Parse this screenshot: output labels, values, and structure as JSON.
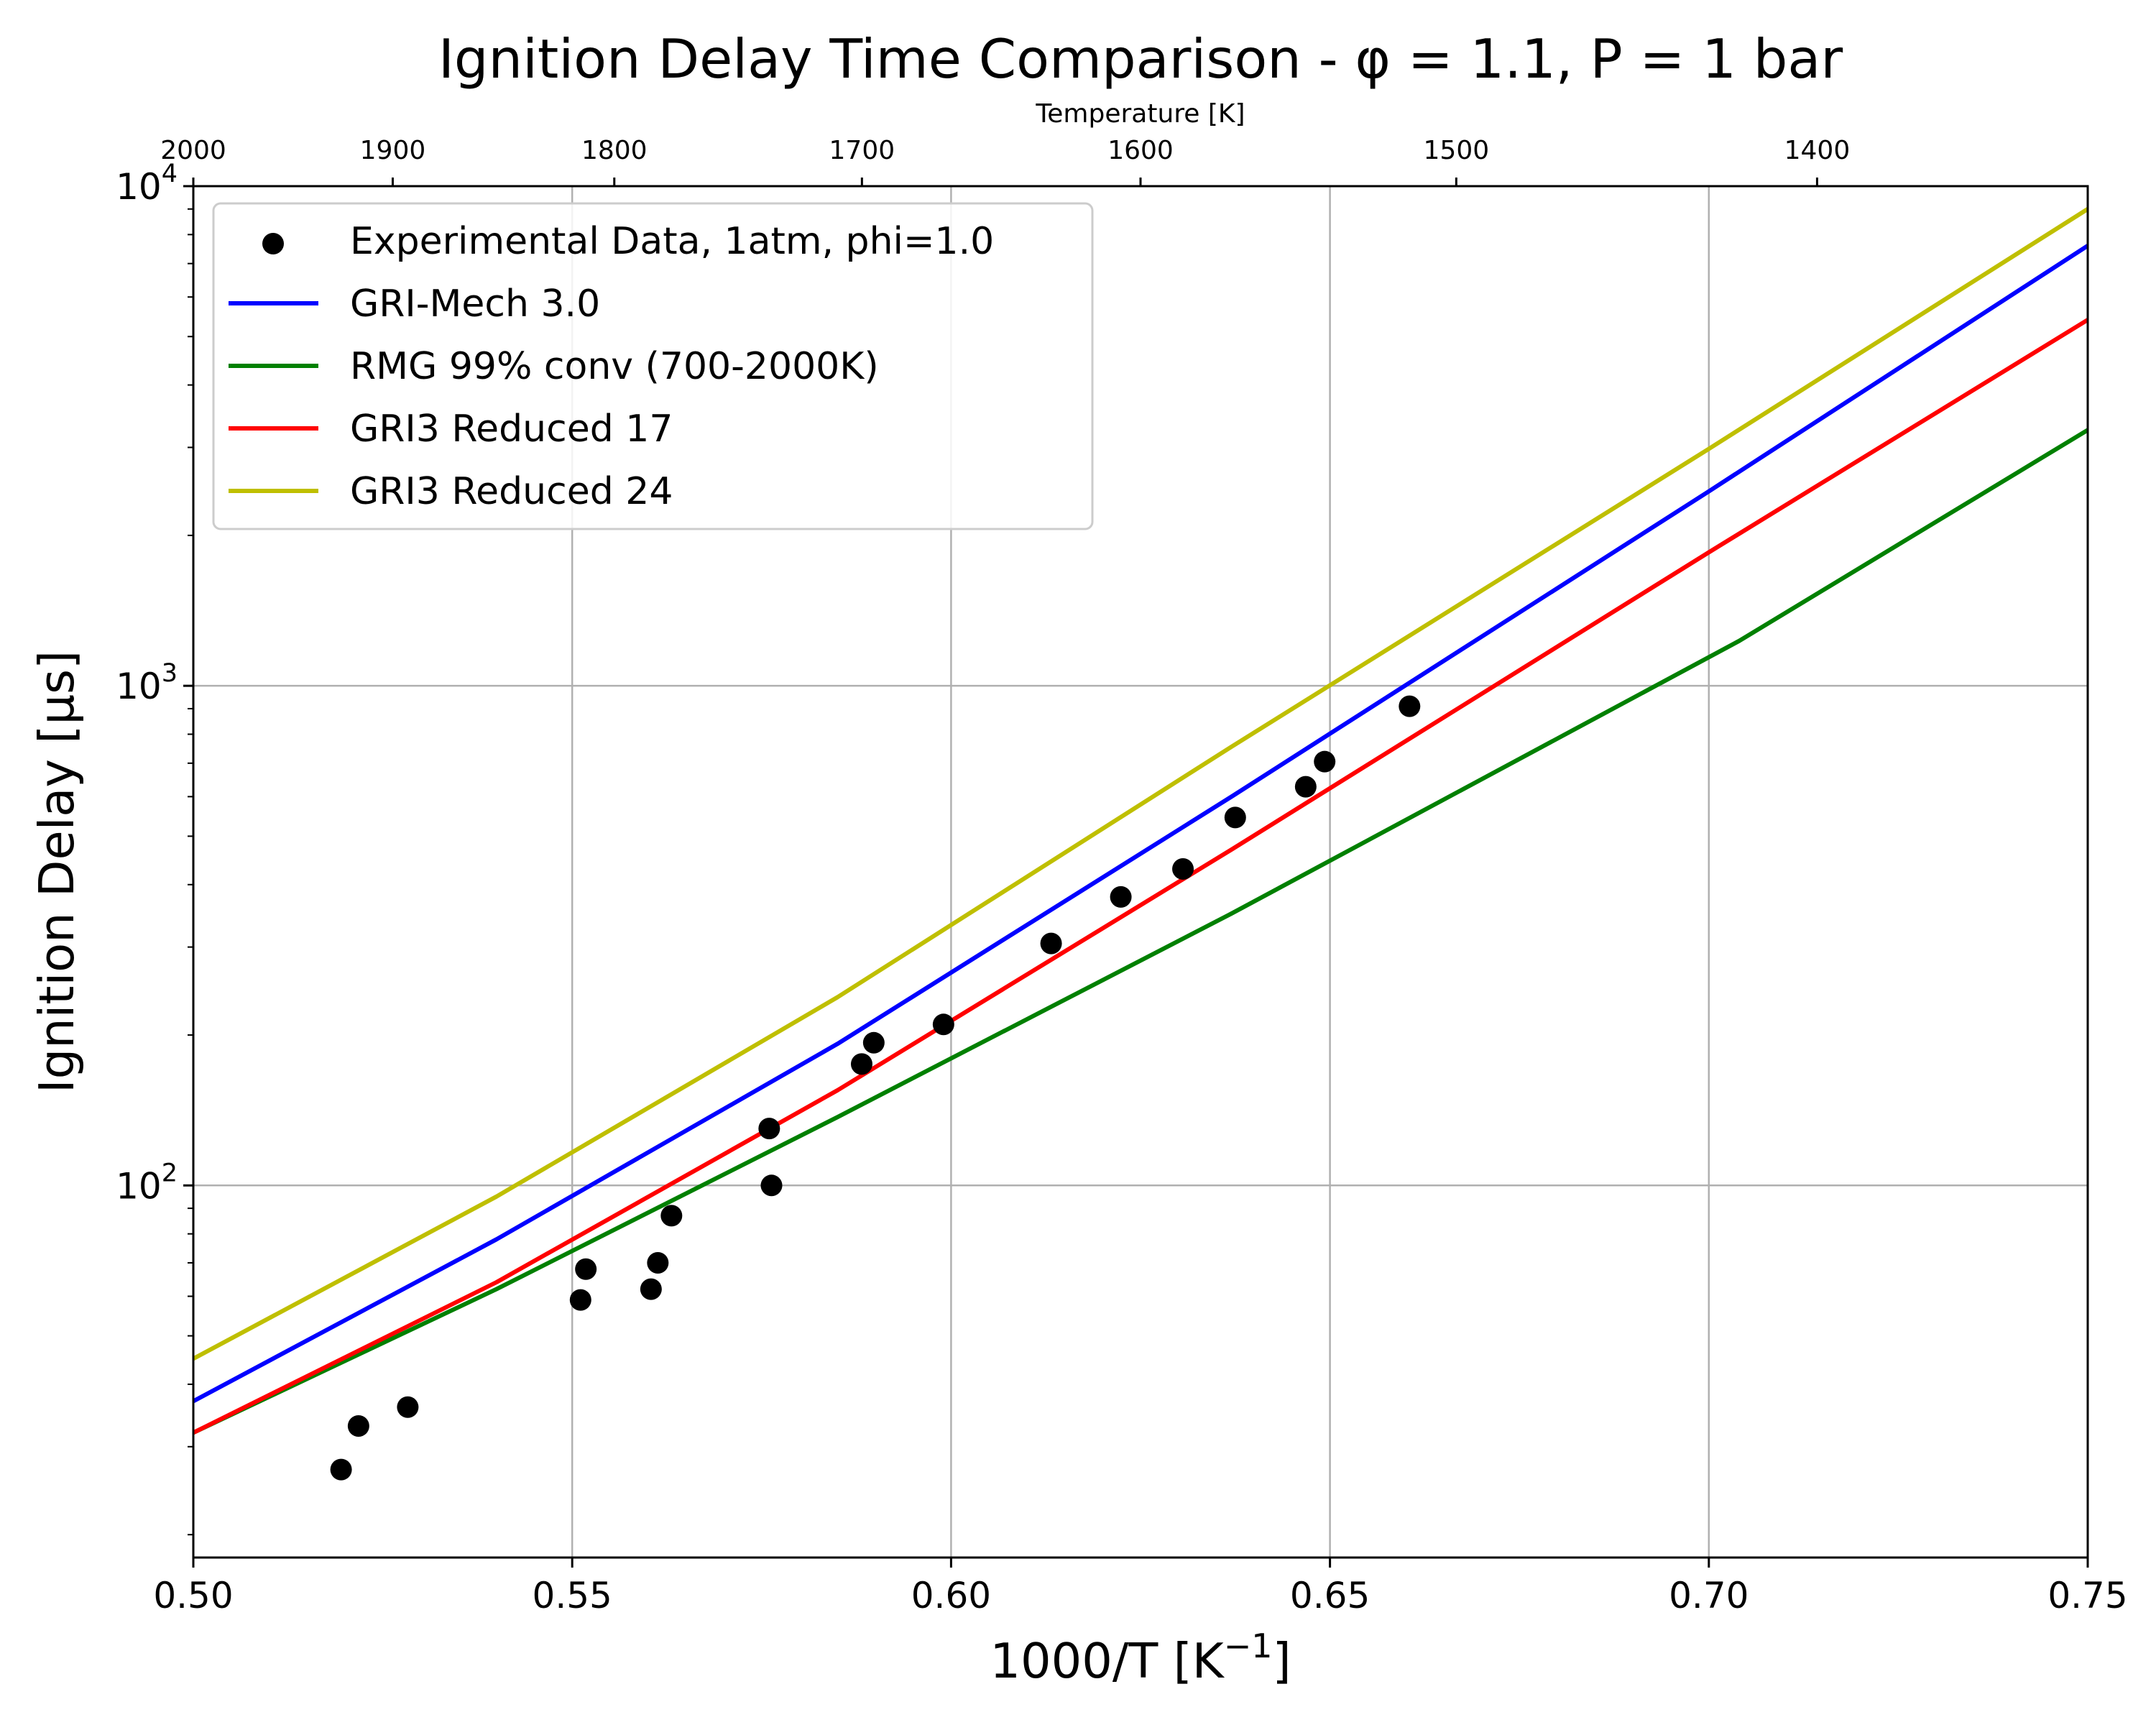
{
  "chart_data": {
    "type": "line",
    "title": "Ignition Delay Time Comparison - φ = 1.1, P = 1 bar",
    "xlabel_base": "1000/T [K",
    "xlabel_sup": "−1",
    "xlabel_end": "]",
    "ylabel": "Ignition Delay [μs]",
    "top_xlabel": "Temperature [K]",
    "xlim": [
      0.5,
      0.75
    ],
    "ylim": [
      18,
      10000
    ],
    "yscale": "log",
    "grid": true,
    "legend_position": "top-left",
    "x_ticks": [
      {
        "value": 0.5,
        "label": "0.50"
      },
      {
        "value": 0.55,
        "label": "0.55"
      },
      {
        "value": 0.6,
        "label": "0.60"
      },
      {
        "value": 0.65,
        "label": "0.65"
      },
      {
        "value": 0.7,
        "label": "0.70"
      },
      {
        "value": 0.75,
        "label": "0.75"
      }
    ],
    "y_ticks": [
      {
        "value": 100,
        "base": "10",
        "exp": "2"
      },
      {
        "value": 1000,
        "base": "10",
        "exp": "3"
      },
      {
        "value": 10000,
        "base": "10",
        "exp": "4"
      }
    ],
    "top_ticks": [
      {
        "temperature": 2000,
        "label": "2000"
      },
      {
        "temperature": 1900,
        "label": "1900"
      },
      {
        "temperature": 1800,
        "label": "1800"
      },
      {
        "temperature": 1700,
        "label": "1700"
      },
      {
        "temperature": 1600,
        "label": "1600"
      },
      {
        "temperature": 1500,
        "label": "1500"
      },
      {
        "temperature": 1400,
        "label": "1400"
      }
    ],
    "scatter": {
      "name": "Experimental Data, 1atm, phi=1.0",
      "color": "#000000",
      "points": [
        {
          "x": 0.5195,
          "y": 27
        },
        {
          "x": 0.5218,
          "y": 33
        },
        {
          "x": 0.5283,
          "y": 36
        },
        {
          "x": 0.5511,
          "y": 59
        },
        {
          "x": 0.5518,
          "y": 68
        },
        {
          "x": 0.5604,
          "y": 62
        },
        {
          "x": 0.5613,
          "y": 70
        },
        {
          "x": 0.5631,
          "y": 87
        },
        {
          "x": 0.576,
          "y": 130
        },
        {
          "x": 0.5763,
          "y": 100
        },
        {
          "x": 0.5882,
          "y": 175
        },
        {
          "x": 0.5898,
          "y": 193
        },
        {
          "x": 0.599,
          "y": 210
        },
        {
          "x": 0.6132,
          "y": 305
        },
        {
          "x": 0.6224,
          "y": 378
        },
        {
          "x": 0.6306,
          "y": 430
        },
        {
          "x": 0.6375,
          "y": 545
        },
        {
          "x": 0.6468,
          "y": 628
        },
        {
          "x": 0.6493,
          "y": 705
        },
        {
          "x": 0.6605,
          "y": 910
        }
      ]
    },
    "series": [
      {
        "name": "GRI-Mech 3.0",
        "color": "#0000ff",
        "points": [
          {
            "x": 0.5,
            "y": 37
          },
          {
            "x": 0.54,
            "y": 78
          },
          {
            "x": 0.585,
            "y": 192
          },
          {
            "x": 0.637,
            "y": 600
          },
          {
            "x": 0.7,
            "y": 2450
          },
          {
            "x": 0.75,
            "y": 7600
          }
        ]
      },
      {
        "name": "RMG 99% conv (700-2000K)",
        "color": "#008000",
        "points": [
          {
            "x": 0.5,
            "y": 32
          },
          {
            "x": 0.54,
            "y": 62
          },
          {
            "x": 0.585,
            "y": 137
          },
          {
            "x": 0.637,
            "y": 350
          },
          {
            "x": 0.704,
            "y": 1230
          },
          {
            "x": 0.75,
            "y": 3250
          }
        ]
      },
      {
        "name": "GRI3 Reduced 17",
        "color": "#ff0000",
        "points": [
          {
            "x": 0.5,
            "y": 32
          },
          {
            "x": 0.54,
            "y": 64
          },
          {
            "x": 0.585,
            "y": 155
          },
          {
            "x": 0.637,
            "y": 470
          },
          {
            "x": 0.7,
            "y": 1850
          },
          {
            "x": 0.75,
            "y": 5400
          }
        ]
      },
      {
        "name": "GRI3 Reduced 24",
        "color": "#bfbf00",
        "points": [
          {
            "x": 0.5,
            "y": 45
          },
          {
            "x": 0.54,
            "y": 95
          },
          {
            "x": 0.585,
            "y": 238
          },
          {
            "x": 0.637,
            "y": 755
          },
          {
            "x": 0.7,
            "y": 2980
          },
          {
            "x": 0.75,
            "y": 9000
          }
        ]
      }
    ]
  }
}
